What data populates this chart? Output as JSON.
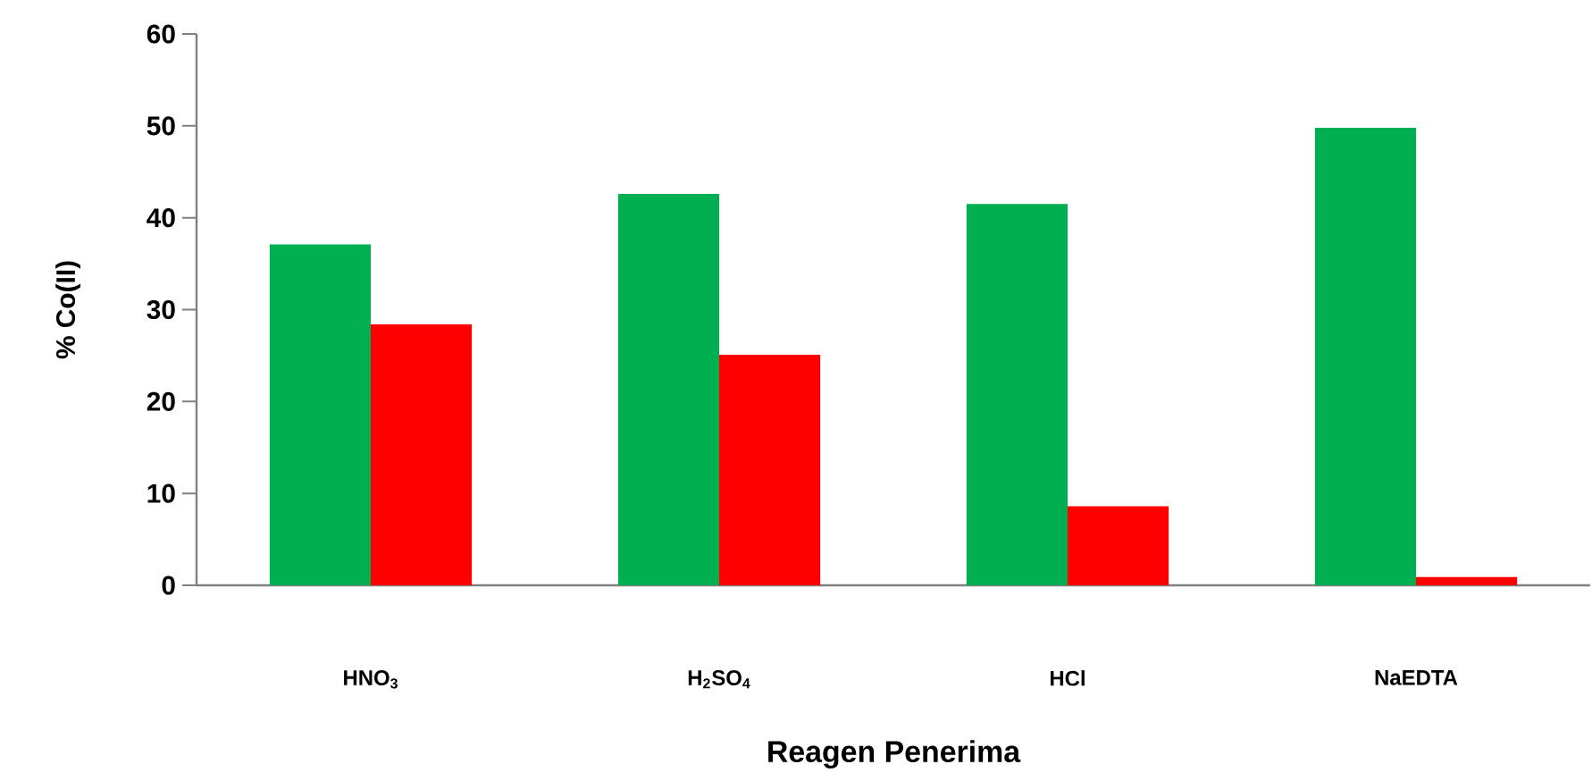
{
  "chart_data": {
    "type": "bar",
    "xlabel": "Reagen Penerima",
    "ylabel": "% Co(II)",
    "categories": [
      "HNO$_{3}$",
      "H$_{2}$SO$_{4}$",
      "HCl",
      "NaEDTA"
    ],
    "series": [
      {
        "color": "#00b050",
        "values": [
          37.1,
          42.6,
          41.5,
          49.8
        ]
      },
      {
        "color": "#ff0000",
        "values": [
          28.4,
          25.1,
          8.6,
          0.9
        ]
      }
    ],
    "ylim": [
      0,
      60
    ],
    "yticks": [
      0,
      10,
      20,
      30,
      40,
      50,
      60
    ]
  }
}
